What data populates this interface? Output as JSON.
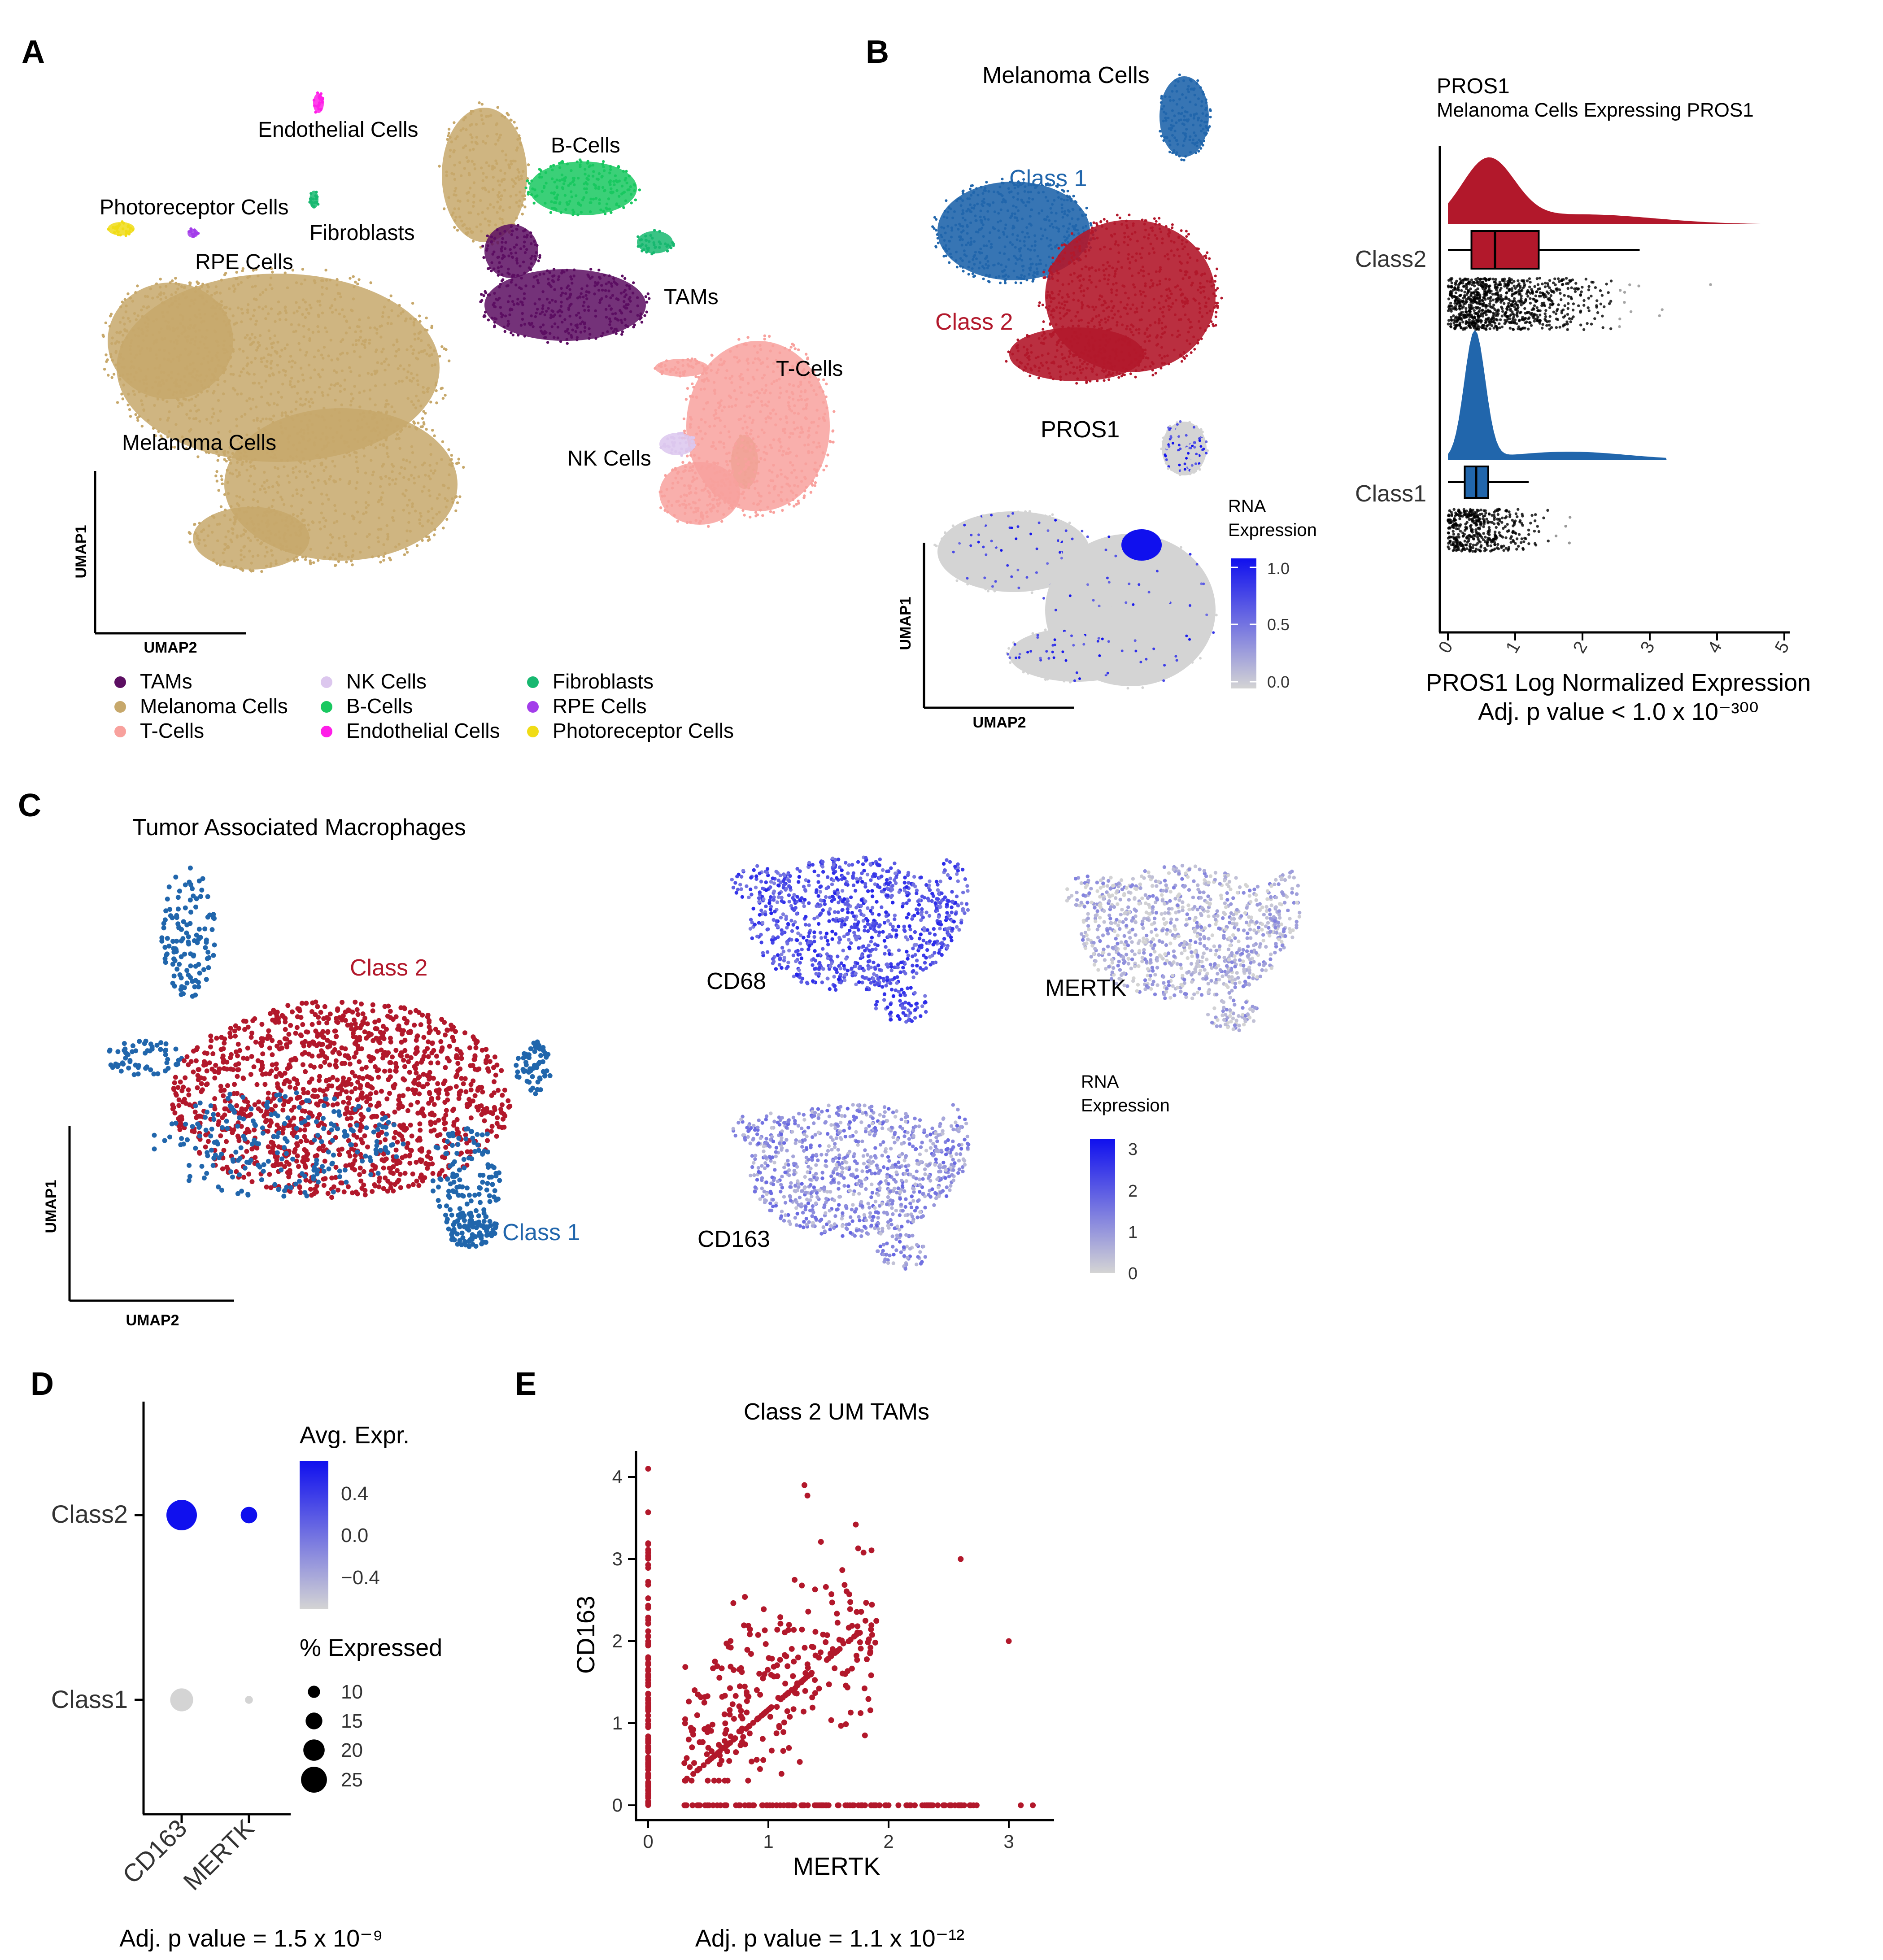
{
  "colors": {
    "tams": "#5c0e62",
    "melanoma": "#c7a86b",
    "tcells": "#f8a19d",
    "nk": "#dcc7ee",
    "bcells": "#19c860",
    "endothelial": "#ff1ee8",
    "fibroblasts": "#17b870",
    "rpe": "#a33dea",
    "photoreceptor": "#f0dc16",
    "class1": "#2166ac",
    "class2": "#b2182b",
    "expr_low": "#d4d4d4",
    "expr_high": "#1010ee",
    "scatter": "#b2182b"
  },
  "panels": {
    "a": "A",
    "b": "B",
    "c": "C",
    "d": "D",
    "e": "E"
  },
  "panelA": {
    "labels": {
      "endothelial": "Endothelial Cells",
      "bcells": "B-Cells",
      "photoreceptor": "Photoreceptor Cells",
      "fibroblasts": "Fibroblasts",
      "rpe": "RPE Cells",
      "tams": "TAMs",
      "tcells": "T-Cells",
      "melanoma": "Melanoma Cells",
      "nk": "NK Cells"
    },
    "axes": {
      "x": "UMAP2",
      "y": "UMAP1"
    },
    "legend": [
      {
        "label": "TAMs",
        "color": "#5c0e62"
      },
      {
        "label": "Melanoma Cells",
        "color": "#c7a86b"
      },
      {
        "label": "T-Cells",
        "color": "#f8a19d"
      },
      {
        "label": "NK Cells",
        "color": "#dcc7ee"
      },
      {
        "label": "B-Cells",
        "color": "#19c860"
      },
      {
        "label": "Endothelial Cells",
        "color": "#ff1ee8"
      },
      {
        "label": "Fibroblasts",
        "color": "#17b870"
      },
      {
        "label": "RPE Cells",
        "color": "#a33dea"
      },
      {
        "label": "Photoreceptor Cells",
        "color": "#f0dc16"
      }
    ]
  },
  "panelB": {
    "umap_title": "Melanoma Cells",
    "class1": "Class 1",
    "class2": "Class 2",
    "feature_title": "PROS1",
    "legend_title_1": "RNA",
    "legend_title_2": "Expression",
    "legend_ticks": [
      "1.0",
      "0.5",
      "0.0"
    ],
    "axes": {
      "x": "UMAP2",
      "y": "UMAP1"
    },
    "raincloud": {
      "title": "PROS1",
      "subtitle": "Melanoma Cells Expressing PROS1",
      "groups": [
        "Class2",
        "Class1"
      ],
      "xticks": [
        "0",
        "1",
        "2",
        "3",
        "4",
        "5"
      ],
      "xlabel": "PROS1 Log Normalized Expression",
      "pvalue": "Adj. p value < 1.0 x 10⁻³⁰⁰"
    }
  },
  "panelC": {
    "title": "Tumor Associated Macrophages",
    "class1": "Class 1",
    "class2": "Class 2",
    "axes": {
      "x": "UMAP2",
      "y": "UMAP1"
    },
    "features": [
      "CD68",
      "MERTK",
      "CD163"
    ],
    "legend_title_1": "RNA",
    "legend_title_2": "Expression",
    "legend_ticks": [
      "3",
      "2",
      "1",
      "0"
    ]
  },
  "chart_data": [
    {
      "type": "dot",
      "panel": "D",
      "categories": [
        "CD163",
        "MERTK"
      ],
      "groups": [
        "Class2",
        "Class1"
      ],
      "avg_expr": {
        "Class2": [
          0.55,
          0.55
        ],
        "Class1": [
          -0.55,
          -0.55
        ]
      },
      "pct_expressed": {
        "Class2": [
          25,
          12
        ],
        "Class1": [
          18,
          4
        ]
      },
      "color_legend": {
        "title": "Avg. Expr.",
        "ticks": [
          "0.4",
          "0.0",
          "−0.4"
        ]
      },
      "size_legend": {
        "title": "% Expressed",
        "ticks": [
          "10",
          "15",
          "20",
          "25"
        ]
      },
      "pvalue": "Adj. p value = 1.5 x 10⁻⁹"
    },
    {
      "type": "scatter",
      "panel": "E",
      "title": "Class 2 UM TAMs",
      "xlabel": "MERTK",
      "ylabel": "CD163",
      "xlim": [
        -0.1,
        3.3
      ],
      "ylim": [
        -0.1,
        4.2
      ],
      "xticks": [
        "0",
        "1",
        "2",
        "3"
      ],
      "yticks": [
        "0",
        "1",
        "2",
        "3",
        "4"
      ],
      "color": "#b2182b",
      "pvalue": "Adj. p value = 1.1 x 10⁻¹²"
    }
  ]
}
